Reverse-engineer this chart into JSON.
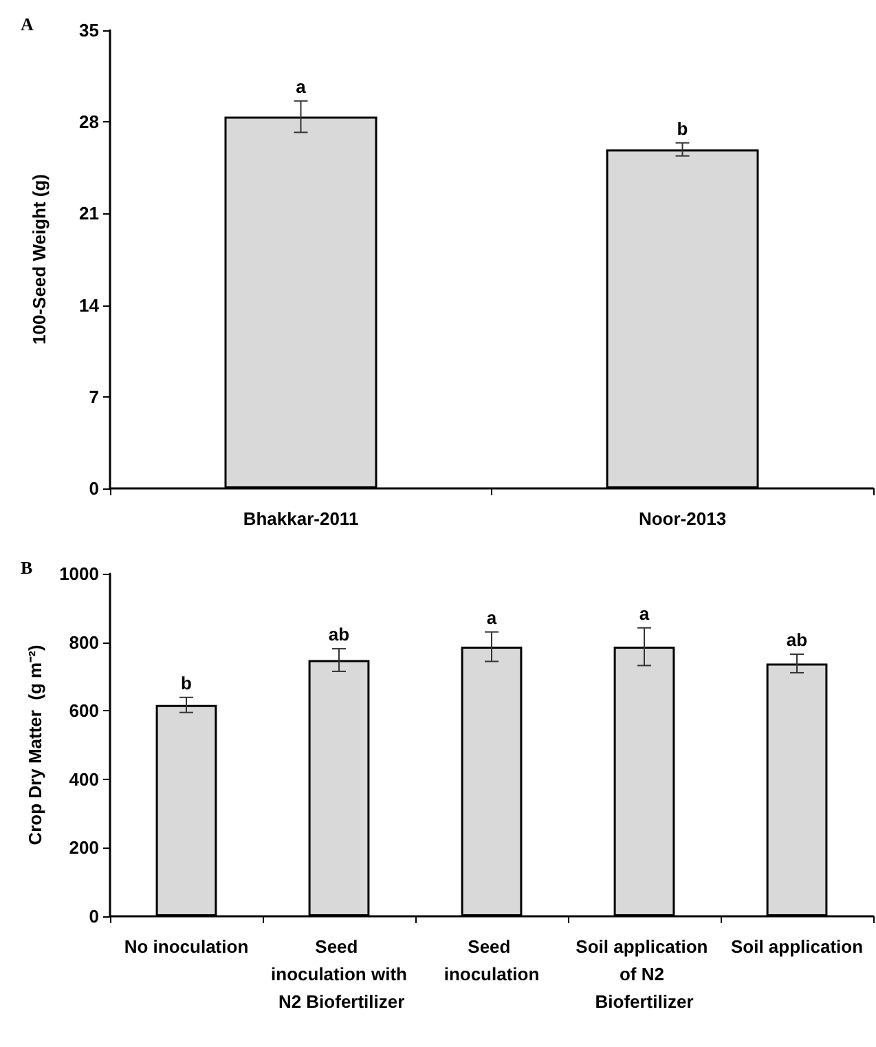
{
  "chart_data": [
    {
      "type": "bar",
      "title": "A",
      "ylabel": "100-Seed Weight (g)",
      "categories": [
        "Bhakkar-2011",
        "Noor-2013"
      ],
      "values": [
        28.4,
        25.9
      ],
      "errors": [
        1.2,
        0.5
      ],
      "color": "#d9d9d9",
      "ylim": [
        0,
        35
      ],
      "yticks": [
        0,
        7,
        14,
        21,
        28,
        35
      ],
      "grid": false,
      "annotations": [
        "a",
        "b"
      ]
    },
    {
      "type": "bar",
      "title": "B",
      "ylabel": "Crop Dry Matter  (g m⁻²)",
      "categories": [
        "No inoculation",
        "Seed inoculation with N2 Biofertilizer",
        "Seed inoculation",
        "Soil application of N2 Biofertilizer",
        "Soil application"
      ],
      "values": [
        617,
        748,
        787,
        787,
        738
      ],
      "errors": [
        22,
        33,
        43,
        55,
        27
      ],
      "color": "#d9d9d9",
      "ylim": [
        0,
        1000
      ],
      "yticks": [
        0,
        200,
        400,
        600,
        800,
        1000
      ],
      "grid": false,
      "annotations": [
        "b",
        "ab",
        "a",
        "a",
        "ab"
      ]
    }
  ]
}
